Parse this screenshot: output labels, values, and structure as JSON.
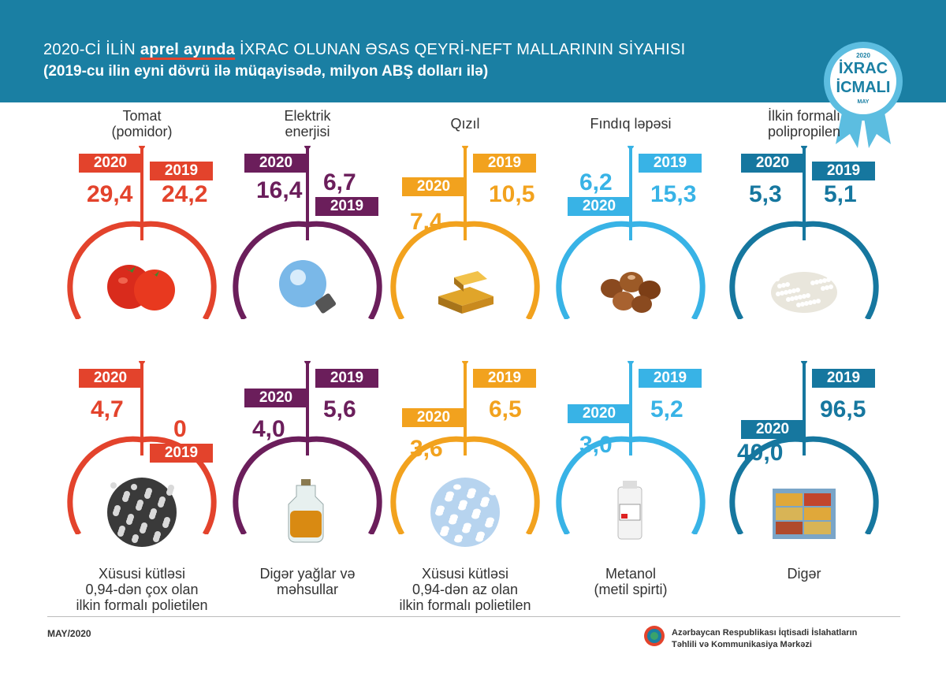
{
  "header": {
    "title_part1": "2020-Cİ İLİN ",
    "title_highlight": "aprel ayında",
    "title_part2": " İXRAC OLUNAN ƏSAS QEYRİ-NEFT MALLARININ SİYAHISI",
    "subtitle": "(2019-cu ilin eyni dövrü ilə müqayisədə, milyon ABŞ dolları ilə)"
  },
  "badge": {
    "year": "2020",
    "line1": "İXRAC",
    "line2": "İCMALI",
    "month": "MAY"
  },
  "colors": {
    "header": "#1a7fa3",
    "red": "#e3432c",
    "purple": "#6b1e5b",
    "orange": "#f2a21e",
    "lightblue": "#38b3e6",
    "blue": "#16779f"
  },
  "items": [
    {
      "name": "Tomat\n(pomidor)",
      "label2020": "2020",
      "label2019": "2019",
      "value2020": "29,4",
      "value2019": "24,2",
      "icon": "tomato-icon"
    },
    {
      "name": "Elektrik\nenerjisi",
      "label2020": "2020",
      "label2019": "2019",
      "value2020": "16,4",
      "value2019": "6,7",
      "icon": "lightbulb-icon"
    },
    {
      "name": "Qızıl",
      "label2020": "2020",
      "label2019": "2019",
      "value2020": "7,4",
      "value2019": "10,5",
      "icon": "gold-bars-icon"
    },
    {
      "name": "Fındıq ləpəsi",
      "label2020": "2020",
      "label2019": "2019",
      "value2020": "6,2",
      "value2019": "15,3",
      "icon": "hazelnut-icon"
    },
    {
      "name": "İlkin formalı\npolipropilen",
      "label2020": "2020",
      "label2019": "2019",
      "value2020": "5,3",
      "value2019": "5,1",
      "icon": "granules-icon"
    },
    {
      "name": "Xüsusi kütləsi\n0,94-dən çox olan\nilkin formalı polietilen",
      "label2020": "2020",
      "label2019": "2019",
      "value2020": "4,7",
      "value2019": "0",
      "icon": "polyethylene-icon"
    },
    {
      "name": "Digər yağlar və\nməhsullar",
      "label2020": "2020",
      "label2019": "2019",
      "value2020": "4,0",
      "value2019": "5,6",
      "icon": "oil-jug-icon"
    },
    {
      "name": "Xüsusi kütləsi\n0,94-dən az olan\nilkin formalı polietilen",
      "label2020": "2020",
      "label2019": "2019",
      "value2020": "3,6",
      "value2019": "6,5",
      "icon": "pellets-icon"
    },
    {
      "name": "Metanol\n(metil spirti)",
      "label2020": "2020",
      "label2019": "2019",
      "value2020": "3,0",
      "value2019": "5,2",
      "icon": "methanol-bottle-icon"
    },
    {
      "name": "Digər",
      "label2020": "2020",
      "label2019": "2019",
      "value2020": "40,0",
      "value2019": "96,5",
      "icon": "containers-icon"
    }
  ],
  "footer": {
    "date": "MAY/2020",
    "org_line1": "Azərbaycan Respublikası İqtisadi İslahatların",
    "org_line2": "Təhlili və Kommunikasiya Mərkəzi"
  }
}
